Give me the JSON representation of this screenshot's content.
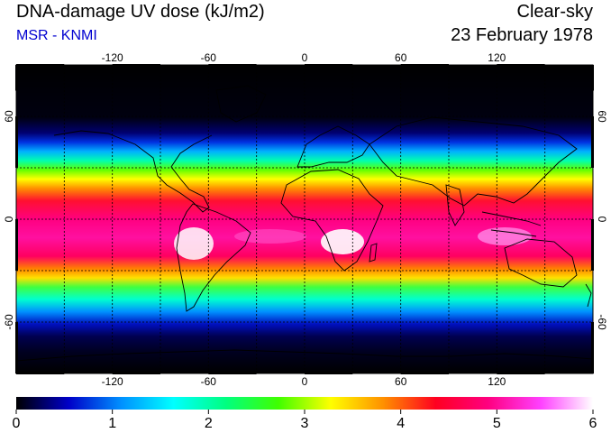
{
  "header": {
    "title": "DNA-damage UV dose (kJ/m2)",
    "subtitle": "MSR - KNMI",
    "mode": "Clear-sky",
    "date": "23 February 1978"
  },
  "map": {
    "longitude_ticks": [
      "-120",
      "-60",
      "0",
      "60",
      "120"
    ],
    "latitude_ticks": [
      "60",
      "0",
      "-60"
    ],
    "graticule": {
      "longitudes": [
        -150,
        -120,
        -90,
        -60,
        -30,
        0,
        30,
        60,
        90,
        120,
        150
      ],
      "latitudes": [
        -60,
        -30,
        0,
        30,
        60
      ]
    },
    "grid_style": "dashed black"
  },
  "colorbar": {
    "tick_labels": [
      "0",
      "1",
      "2",
      "3",
      "4",
      "5",
      "6"
    ],
    "range": [
      0,
      6
    ],
    "colors": [
      "#000000",
      "#0000c8",
      "#0090ff",
      "#00ffff",
      "#00ff80",
      "#40ff00",
      "#ffff00",
      "#ff9000",
      "#ff0020",
      "#ff0080",
      "#ff40ff",
      "#ffffff"
    ]
  },
  "colors": {
    "subtitle": "#0000d0",
    "title": "#000000"
  }
}
